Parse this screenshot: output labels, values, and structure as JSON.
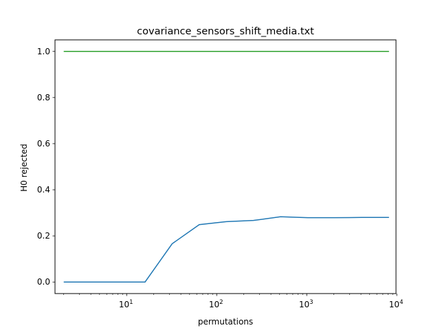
{
  "chart_data": {
    "type": "line",
    "title": "covariance_sensors_shift_media.txt",
    "xlabel": "permutations",
    "ylabel": "H0 rejected",
    "xscale": "log",
    "xlim": [
      1.6,
      9800
    ],
    "ylim": [
      -0.05,
      1.05
    ],
    "grid": false,
    "x_ticks": [
      {
        "value": 10,
        "base": "10",
        "exp": "1"
      },
      {
        "value": 100,
        "base": "10",
        "exp": "2"
      },
      {
        "value": 1000,
        "base": "10",
        "exp": "3"
      },
      {
        "value": 10000,
        "base": "10",
        "exp": "4"
      }
    ],
    "y_ticks": [
      {
        "value": 0.0,
        "label": "0.0"
      },
      {
        "value": 0.2,
        "label": "0.2"
      },
      {
        "value": 0.4,
        "label": "0.4"
      },
      {
        "value": 0.6,
        "label": "0.6"
      },
      {
        "value": 0.8,
        "label": "0.8"
      },
      {
        "value": 1.0,
        "label": "1.0"
      }
    ],
    "series": [
      {
        "color": "#1f77b4",
        "x": [
          2,
          4,
          8,
          16,
          32,
          64,
          128,
          256,
          512,
          1024,
          2048,
          4096,
          8192
        ],
        "y": [
          0.0,
          0.0,
          0.0,
          0.0,
          0.166,
          0.249,
          0.262,
          0.267,
          0.283,
          0.279,
          0.279,
          0.28,
          0.28
        ]
      },
      {
        "color": "#2ca02c",
        "x": [
          2,
          4,
          8,
          16,
          32,
          64,
          128,
          256,
          512,
          1024,
          2048,
          4096,
          8192
        ],
        "y": [
          1.0,
          1.0,
          1.0,
          1.0,
          1.0,
          1.0,
          1.0,
          1.0,
          1.0,
          1.0,
          1.0,
          1.0,
          1.0
        ]
      }
    ]
  }
}
